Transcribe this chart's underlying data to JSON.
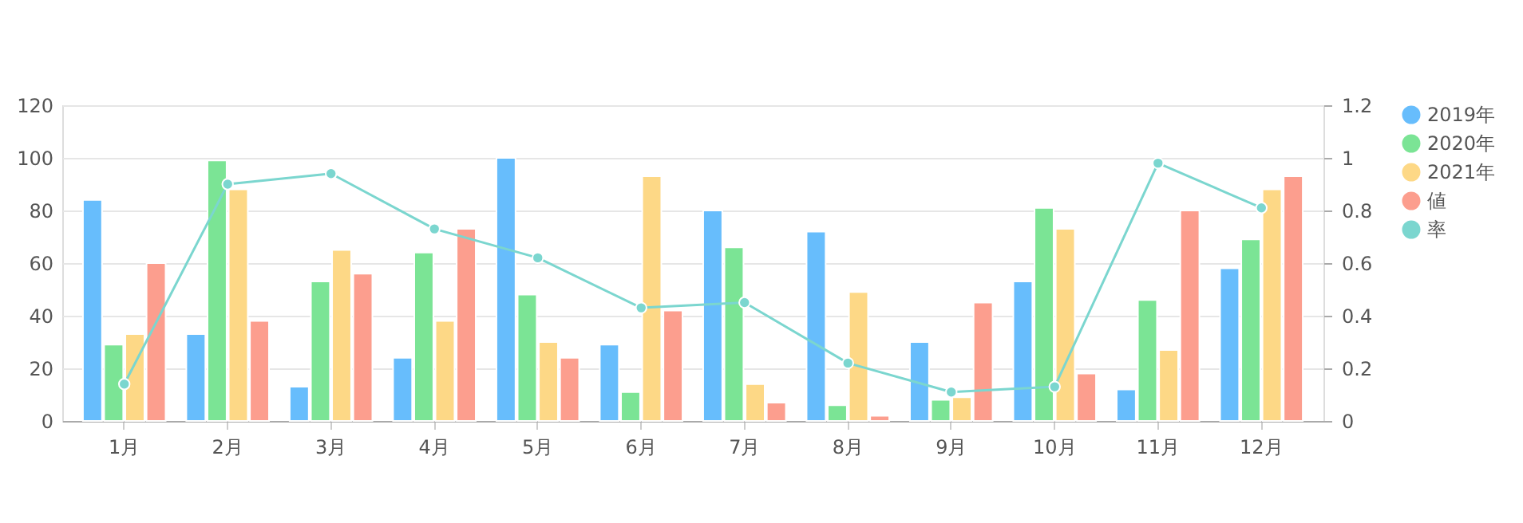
{
  "chart_data": {
    "type": "bar",
    "categories": [
      "1月",
      "2月",
      "3月",
      "4月",
      "5月",
      "6月",
      "7月",
      "8月",
      "9月",
      "10月",
      "11月",
      "12月"
    ],
    "series": [
      {
        "name": "2019年",
        "color": "#67bdfc",
        "values": [
          84,
          33,
          13,
          24,
          100,
          29,
          80,
          72,
          30,
          53,
          12,
          58
        ]
      },
      {
        "name": "2020年",
        "color": "#7be495",
        "values": [
          29,
          99,
          53,
          64,
          48,
          11,
          66,
          6,
          8,
          81,
          46,
          69
        ]
      },
      {
        "name": "2021年",
        "color": "#fdd886",
        "values": [
          33,
          88,
          65,
          38,
          30,
          93,
          14,
          49,
          9,
          73,
          27,
          88
        ]
      },
      {
        "name": "値",
        "color": "#fc9e8e",
        "values": [
          60,
          38,
          56,
          73,
          24,
          42,
          7,
          2,
          45,
          18,
          80,
          93
        ]
      },
      {
        "name": "率",
        "color": "#7bd6cf",
        "type": "line",
        "axis": "y2",
        "marker": "circle",
        "values": [
          0.14,
          0.9,
          0.94,
          0.73,
          0.62,
          0.43,
          0.45,
          0.22,
          0.11,
          0.13,
          0.98,
          0.81
        ]
      }
    ],
    "ylim": [
      0,
      120
    ],
    "yticks": [
      0,
      20,
      40,
      60,
      80,
      100,
      120
    ],
    "y2lim": [
      0,
      1.2
    ],
    "y2ticks": [
      0,
      0.2,
      0.4,
      0.6,
      0.8,
      1,
      1.2
    ],
    "grid": "y",
    "legend": "right"
  }
}
